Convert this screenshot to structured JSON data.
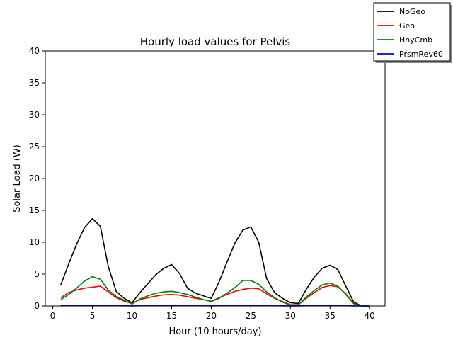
{
  "chart_data": {
    "type": "line",
    "title": "Hourly load values for Pelvis",
    "xlabel": "Hour (10 hours/day)",
    "ylabel": "Solar Load (W)",
    "xlim": [
      -0.95,
      41.95
    ],
    "ylim": [
      0,
      40
    ],
    "xticks": [
      0,
      5,
      10,
      15,
      20,
      25,
      30,
      35,
      40
    ],
    "yticks": [
      0,
      5,
      10,
      15,
      20,
      25,
      30,
      35,
      40
    ],
    "grid": false,
    "legend_position": "top-right",
    "x": [
      1,
      2,
      3,
      4,
      5,
      6,
      7,
      8,
      9,
      10,
      11,
      12,
      13,
      14,
      15,
      16,
      17,
      18,
      19,
      20,
      21,
      22,
      23,
      24,
      25,
      26,
      27,
      28,
      29,
      30,
      31,
      32,
      33,
      34,
      35,
      36,
      37,
      38,
      39,
      40
    ],
    "series": [
      {
        "name": "NoGeo",
        "color": "#000000",
        "values": [
          3.3,
          6.6,
          9.7,
          12.3,
          13.7,
          12.5,
          6.2,
          2.3,
          1.2,
          0.5,
          2.1,
          3.5,
          4.9,
          5.9,
          6.5,
          5.1,
          2.8,
          2.0,
          1.6,
          1.2,
          3.8,
          6.9,
          9.9,
          11.9,
          12.4,
          10.0,
          4.3,
          2.1,
          1.2,
          0.5,
          0.4,
          2.6,
          4.5,
          5.9,
          6.4,
          5.7,
          3.1,
          0.6,
          0.0,
          0.0
        ]
      },
      {
        "name": "Geo",
        "color": "#ff0000",
        "values": [
          1.3,
          2.1,
          2.5,
          2.8,
          2.95,
          3.1,
          2.2,
          1.3,
          0.75,
          0.4,
          1.0,
          1.3,
          1.55,
          1.75,
          1.8,
          1.7,
          1.45,
          1.2,
          1.0,
          0.75,
          1.3,
          1.8,
          2.3,
          2.6,
          2.8,
          2.7,
          1.9,
          1.2,
          0.7,
          0.2,
          0.2,
          1.2,
          2.1,
          2.9,
          3.2,
          3.0,
          1.9,
          0.4,
          0.0,
          0.0
        ]
      },
      {
        "name": "HnyCmb",
        "color": "#008000",
        "values": [
          1.0,
          1.8,
          2.8,
          3.9,
          4.6,
          4.2,
          2.5,
          1.5,
          0.9,
          0.3,
          1.1,
          1.6,
          2.0,
          2.2,
          2.3,
          2.1,
          1.8,
          1.4,
          1.0,
          0.7,
          1.2,
          2.0,
          2.9,
          4.0,
          4.0,
          3.4,
          2.2,
          1.3,
          0.6,
          0.15,
          0.15,
          1.4,
          2.4,
          3.3,
          3.6,
          3.1,
          1.8,
          0.35,
          0.0,
          0.0
        ]
      },
      {
        "name": "PrsmRev60",
        "color": "#0000ff",
        "values": [
          0.02,
          0.05,
          0.08,
          0.1,
          0.12,
          0.1,
          0.06,
          0.03,
          0.02,
          0.01,
          0.03,
          0.05,
          0.07,
          0.08,
          0.09,
          0.08,
          0.06,
          0.04,
          0.03,
          0.02,
          0.04,
          0.07,
          0.1,
          0.12,
          0.12,
          0.1,
          0.06,
          0.03,
          0.02,
          0.01,
          0.01,
          0.04,
          0.07,
          0.09,
          0.1,
          0.08,
          0.05,
          0.01,
          0.0,
          0.0
        ]
      }
    ]
  }
}
